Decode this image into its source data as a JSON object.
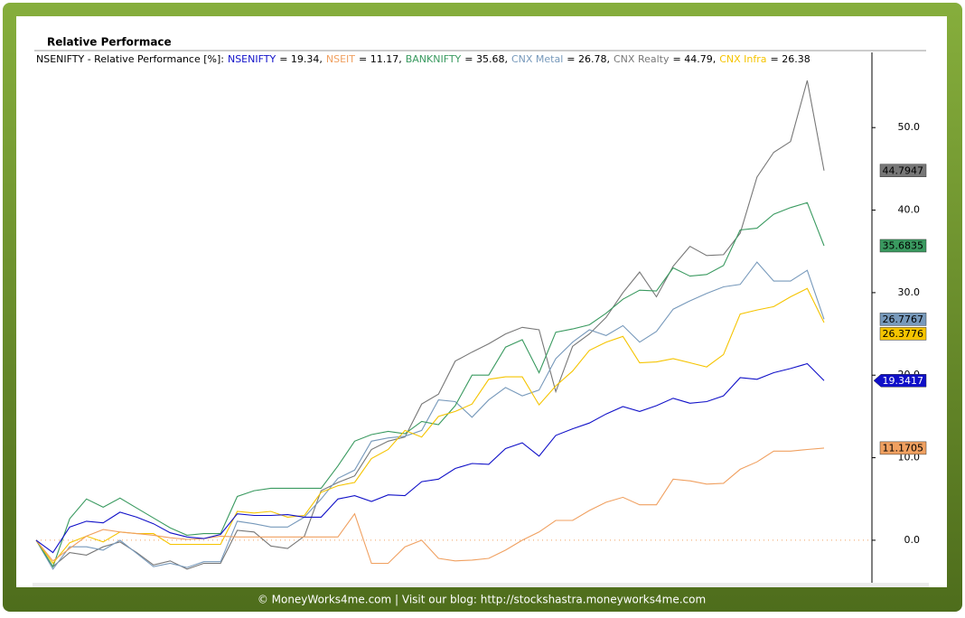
{
  "chart_data": {
    "type": "line",
    "title": "Relative Performace",
    "legend_title": "NSENIFTY - Relative Performance [%]:",
    "footer": "© MoneyWorks4me.com | Visit our blog: http://stockshastra.moneyworks4me.com",
    "ylim": [
      -5,
      59
    ],
    "yticks": [
      {
        "value": 0,
        "label": "0.0"
      },
      {
        "value": 10,
        "label": "10.0"
      },
      {
        "value": 20,
        "label": "20.0"
      },
      {
        "value": 30,
        "label": "30.0"
      },
      {
        "value": 40,
        "label": "40.0"
      },
      {
        "value": 50,
        "label": "50.0"
      }
    ],
    "series": [
      {
        "name": "NSENIFTY",
        "color": "#1010c8",
        "legend_label": "= 19.34,",
        "values": [
          0,
          -1.5,
          1.6,
          2.3,
          2.1,
          3.4,
          2.8,
          2.0,
          0.9,
          0.4,
          0.2,
          0.7,
          3.2,
          3.0,
          3.0,
          3.1,
          2.8,
          2.8,
          5.0,
          5.4,
          4.7,
          5.5,
          5.4,
          7.1,
          7.4,
          8.7,
          9.3,
          9.2,
          11.1,
          11.8,
          10.2,
          12.7,
          13.5,
          14.2,
          15.3,
          16.2,
          15.6,
          16.3,
          17.2,
          16.6,
          16.8,
          17.5,
          19.7,
          19.5,
          20.3,
          20.8,
          21.4,
          19.3417
        ]
      },
      {
        "name": "NSEIT",
        "color": "#f0a060",
        "legend_label": "= 11.17,",
        "values": [
          0,
          -2.5,
          -1.0,
          0.5,
          1.3,
          1.0,
          0.8,
          0.6,
          0.3,
          0.1,
          0.2,
          0.5,
          0.4,
          0.4,
          0.4,
          0.4,
          0.4,
          0.4,
          0.4,
          3.2,
          -2.8,
          -2.8,
          -0.8,
          0.0,
          -2.2,
          -2.5,
          -2.4,
          -2.2,
          -1.2,
          0.0,
          1.0,
          2.4,
          2.4,
          3.6,
          4.6,
          5.2,
          4.3,
          4.3,
          7.4,
          7.2,
          6.8,
          6.9,
          8.6,
          9.5,
          10.8,
          10.8,
          11.0,
          11.1705
        ]
      },
      {
        "name": "BANKNIFTY",
        "color": "#3a9a60",
        "legend_label": "= 35.68,",
        "values": [
          0,
          -3.2,
          2.6,
          5.0,
          4.0,
          5.1,
          3.9,
          2.7,
          1.5,
          0.6,
          0.8,
          0.8,
          5.3,
          6.0,
          6.3,
          6.3,
          6.3,
          6.3,
          9.0,
          12.0,
          12.8,
          13.2,
          12.9,
          14.4,
          14.0,
          16.3,
          20.0,
          20.0,
          23.4,
          24.3,
          20.3,
          25.2,
          25.6,
          26.1,
          27.5,
          29.2,
          30.3,
          30.2,
          33.0,
          32.0,
          32.2,
          33.3,
          37.6,
          37.8,
          39.5,
          40.3,
          40.9,
          35.6835
        ]
      },
      {
        "name": "CNX Metal",
        "color": "#7799bb",
        "legend_label": "= 26.78,",
        "values": [
          0,
          -3.5,
          -0.8,
          -0.8,
          -1.2,
          0.0,
          -1.6,
          -3.2,
          -2.8,
          -3.3,
          -2.6,
          -2.6,
          2.3,
          2.0,
          1.6,
          1.6,
          2.8,
          5.0,
          7.5,
          8.5,
          12.0,
          12.4,
          12.6,
          13.3,
          17.0,
          16.8,
          14.9,
          17.0,
          18.5,
          17.5,
          18.2,
          22.0,
          24.0,
          25.5,
          24.8,
          26.0,
          24.0,
          25.3,
          28.0,
          29.0,
          29.9,
          30.7,
          31.0,
          33.7,
          31.4,
          31.4,
          32.7,
          26.7767
        ]
      },
      {
        "name": "CNX Realty",
        "color": "#777777",
        "legend_label": "= 44.79,",
        "values": [
          0,
          -3.2,
          -1.5,
          -1.8,
          -0.8,
          -0.2,
          -1.5,
          -3.0,
          -2.5,
          -3.5,
          -2.8,
          -2.8,
          1.2,
          1.0,
          -0.7,
          -1.0,
          0.5,
          6.0,
          7.0,
          7.8,
          11.0,
          12.0,
          12.5,
          16.5,
          17.7,
          21.7,
          22.8,
          23.8,
          25.0,
          25.8,
          25.5,
          18.0,
          23.5,
          25.0,
          27.0,
          30.0,
          32.5,
          29.5,
          33.2,
          35.6,
          34.5,
          34.6,
          37.2,
          44.0,
          47.0,
          48.3,
          55.7,
          44.7947
        ]
      },
      {
        "name": "CNX Infra",
        "color": "#f5c400",
        "legend_label": "= 26.38",
        "values": [
          0,
          -2.8,
          -0.3,
          0.5,
          -0.2,
          1.0,
          0.8,
          0.8,
          -0.5,
          -0.5,
          -0.5,
          -0.5,
          3.5,
          3.3,
          3.5,
          2.8,
          3.0,
          5.8,
          6.6,
          7.0,
          9.9,
          11.0,
          13.3,
          12.5,
          15.0,
          15.6,
          16.5,
          19.5,
          19.8,
          19.8,
          16.4,
          18.7,
          20.5,
          23.0,
          24.0,
          24.7,
          21.5,
          21.6,
          22.0,
          21.5,
          21.0,
          22.5,
          27.4,
          27.9,
          28.3,
          29.5,
          30.5,
          26.3776
        ]
      }
    ]
  }
}
